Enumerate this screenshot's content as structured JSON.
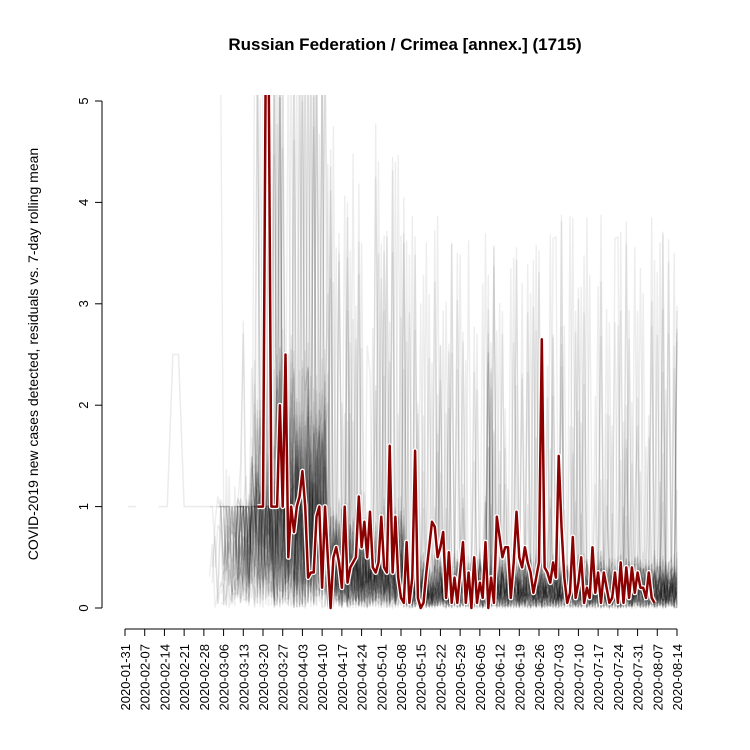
{
  "chart_data": {
    "type": "line",
    "title": "Russian Federation / Crimea [annex.] (1715)",
    "ylabel": "COVID-2019 new cases detected, residuals vs. 7-day rolling mean",
    "xlabel": "",
    "ylim": [
      0,
      5
    ],
    "yticks": [
      "0",
      "1",
      "2",
      "3",
      "4",
      "5"
    ],
    "x_start": "2020-01-31",
    "x_end": "2020-08-14",
    "xticks": [
      "2020-01-31",
      "2020-02-07",
      "2020-02-14",
      "2020-02-21",
      "2020-02-28",
      "2020-03-06",
      "2020-03-13",
      "2020-03-20",
      "2020-03-27",
      "2020-04-03",
      "2020-04-10",
      "2020-04-17",
      "2020-04-24",
      "2020-05-01",
      "2020-05-08",
      "2020-05-15",
      "2020-05-22",
      "2020-05-29",
      "2020-06-05",
      "2020-06-12",
      "2020-06-19",
      "2020-06-26",
      "2020-07-03",
      "2020-07-10",
      "2020-07-17",
      "2020-07-24",
      "2020-07-31",
      "2020-08-07",
      "2020-08-14"
    ],
    "grid": false,
    "background_series_color": "#000000",
    "highlight_color": "#8b0000",
    "background_series_note": "many semi-transparent grey residual traces for other regions",
    "series": [
      {
        "values": [
          [
            "2020-03-18",
            1.0
          ],
          [
            "2020-03-19",
            1.0
          ],
          [
            "2020-03-20",
            1.0
          ],
          [
            "2020-03-21",
            5.5
          ],
          [
            "2020-03-22",
            5.5
          ],
          [
            "2020-03-23",
            1.0
          ],
          [
            "2020-03-24",
            1.0
          ],
          [
            "2020-03-25",
            1.0
          ],
          [
            "2020-03-26",
            2.0
          ],
          [
            "2020-03-27",
            1.0
          ],
          [
            "2020-03-28",
            2.5
          ],
          [
            "2020-03-29",
            0.5
          ],
          [
            "2020-03-30",
            1.0
          ],
          [
            "2020-03-31",
            0.75
          ],
          [
            "2020-04-01",
            1.0
          ],
          [
            "2020-04-02",
            1.1
          ],
          [
            "2020-04-03",
            1.35
          ],
          [
            "2020-04-04",
            1.0
          ],
          [
            "2020-04-05",
            0.3
          ],
          [
            "2020-04-06",
            0.35
          ],
          [
            "2020-04-07",
            0.35
          ],
          [
            "2020-04-08",
            0.9
          ],
          [
            "2020-04-09",
            1.0
          ],
          [
            "2020-04-10",
            0.2
          ],
          [
            "2020-04-11",
            1.0
          ],
          [
            "2020-04-12",
            0.5
          ],
          [
            "2020-04-13",
            0.0
          ],
          [
            "2020-04-14",
            0.5
          ],
          [
            "2020-04-15",
            0.6
          ],
          [
            "2020-04-16",
            0.45
          ],
          [
            "2020-04-17",
            0.2
          ],
          [
            "2020-04-18",
            1.0
          ],
          [
            "2020-04-19",
            0.25
          ],
          [
            "2020-04-20",
            0.4
          ],
          [
            "2020-04-21",
            0.45
          ],
          [
            "2020-04-22",
            0.5
          ],
          [
            "2020-04-23",
            1.1
          ],
          [
            "2020-04-24",
            0.6
          ],
          [
            "2020-04-25",
            0.85
          ],
          [
            "2020-04-26",
            0.5
          ],
          [
            "2020-04-27",
            0.95
          ],
          [
            "2020-04-28",
            0.4
          ],
          [
            "2020-04-29",
            0.35
          ],
          [
            "2020-04-30",
            0.45
          ],
          [
            "2020-05-01",
            0.9
          ],
          [
            "2020-05-02",
            0.4
          ],
          [
            "2020-05-03",
            0.35
          ],
          [
            "2020-05-04",
            1.6
          ],
          [
            "2020-05-05",
            0.35
          ],
          [
            "2020-05-06",
            0.9
          ],
          [
            "2020-05-07",
            0.3
          ],
          [
            "2020-05-08",
            0.1
          ],
          [
            "2020-05-09",
            0.05
          ],
          [
            "2020-05-10",
            0.65
          ],
          [
            "2020-05-11",
            0.05
          ],
          [
            "2020-05-12",
            0.3
          ],
          [
            "2020-05-13",
            1.55
          ],
          [
            "2020-05-14",
            0.1
          ],
          [
            "2020-05-15",
            0.0
          ],
          [
            "2020-05-16",
            0.05
          ],
          [
            "2020-05-17",
            0.35
          ],
          [
            "2020-05-18",
            0.6
          ],
          [
            "2020-05-19",
            0.85
          ],
          [
            "2020-05-20",
            0.8
          ],
          [
            "2020-05-21",
            0.5
          ],
          [
            "2020-05-22",
            0.6
          ],
          [
            "2020-05-23",
            0.75
          ],
          [
            "2020-05-24",
            0.1
          ],
          [
            "2020-05-25",
            0.55
          ],
          [
            "2020-05-26",
            0.05
          ],
          [
            "2020-05-27",
            0.3
          ],
          [
            "2020-05-28",
            0.05
          ],
          [
            "2020-05-29",
            0.35
          ],
          [
            "2020-05-30",
            0.65
          ],
          [
            "2020-05-31",
            0.05
          ],
          [
            "2020-06-01",
            0.35
          ],
          [
            "2020-06-02",
            0.0
          ],
          [
            "2020-06-03",
            0.5
          ],
          [
            "2020-06-04",
            0.05
          ],
          [
            "2020-06-05",
            0.25
          ],
          [
            "2020-06-06",
            0.1
          ],
          [
            "2020-06-07",
            0.65
          ],
          [
            "2020-06-08",
            0.0
          ],
          [
            "2020-06-09",
            0.3
          ],
          [
            "2020-06-10",
            0.05
          ],
          [
            "2020-06-11",
            0.9
          ],
          [
            "2020-06-12",
            0.7
          ],
          [
            "2020-06-13",
            0.5
          ],
          [
            "2020-06-14",
            0.6
          ],
          [
            "2020-06-15",
            0.6
          ],
          [
            "2020-06-16",
            0.1
          ],
          [
            "2020-06-17",
            0.45
          ],
          [
            "2020-06-18",
            0.95
          ],
          [
            "2020-06-19",
            0.5
          ],
          [
            "2020-06-20",
            0.4
          ],
          [
            "2020-06-21",
            0.6
          ],
          [
            "2020-06-22",
            0.45
          ],
          [
            "2020-06-23",
            0.35
          ],
          [
            "2020-06-24",
            0.15
          ],
          [
            "2020-06-25",
            0.3
          ],
          [
            "2020-06-26",
            0.45
          ],
          [
            "2020-06-27",
            2.65
          ],
          [
            "2020-06-28",
            0.4
          ],
          [
            "2020-06-29",
            0.35
          ],
          [
            "2020-06-30",
            0.25
          ],
          [
            "2020-07-01",
            0.45
          ],
          [
            "2020-07-02",
            0.3
          ],
          [
            "2020-07-03",
            1.5
          ],
          [
            "2020-07-04",
            0.8
          ],
          [
            "2020-07-05",
            0.3
          ],
          [
            "2020-07-06",
            0.05
          ],
          [
            "2020-07-07",
            0.15
          ],
          [
            "2020-07-08",
            0.7
          ],
          [
            "2020-07-09",
            0.1
          ],
          [
            "2020-07-10",
            0.25
          ],
          [
            "2020-07-11",
            0.5
          ],
          [
            "2020-07-12",
            0.05
          ],
          [
            "2020-07-13",
            0.2
          ],
          [
            "2020-07-14",
            0.1
          ],
          [
            "2020-07-15",
            0.6
          ],
          [
            "2020-07-16",
            0.15
          ],
          [
            "2020-07-17",
            0.35
          ],
          [
            "2020-07-18",
            0.05
          ],
          [
            "2020-07-19",
            0.35
          ],
          [
            "2020-07-20",
            0.2
          ],
          [
            "2020-07-21",
            0.05
          ],
          [
            "2020-07-22",
            0.1
          ],
          [
            "2020-07-23",
            0.35
          ],
          [
            "2020-07-24",
            0.05
          ],
          [
            "2020-07-25",
            0.45
          ],
          [
            "2020-07-26",
            0.05
          ],
          [
            "2020-07-27",
            0.4
          ],
          [
            "2020-07-28",
            0.1
          ],
          [
            "2020-07-29",
            0.4
          ],
          [
            "2020-07-30",
            0.15
          ],
          [
            "2020-07-31",
            0.35
          ],
          [
            "2020-08-01",
            0.2
          ],
          [
            "2020-08-02",
            0.2
          ],
          [
            "2020-08-03",
            0.1
          ],
          [
            "2020-08-04",
            0.35
          ],
          [
            "2020-08-05",
            0.1
          ],
          [
            "2020-08-06",
            0.05
          ]
        ]
      }
    ]
  }
}
